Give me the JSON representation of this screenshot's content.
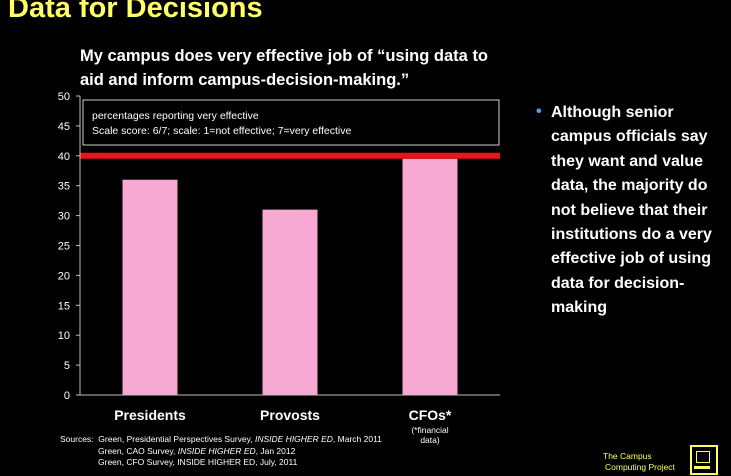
{
  "page": {
    "title": "Data for Decisions",
    "question": "My campus does very effective job of “using data to aid and inform campus-decision-making.”",
    "bullet": "Although senior campus officials say they want and value data, the majority do not believe that their institutions do a very effective job of using data for decision-making",
    "sources": {
      "label": "Sources:",
      "line1_prefix": "Green, Presidential Perspectives Survey,",
      "line1_pub": "INSIDE HIGHER ED",
      "line1_date": ", March 2011",
      "line2_prefix": "Green, CAO Survey,",
      "line2_pub": "INSIDE HIGHER ED",
      "line2_date": ", Jan 2012",
      "line3_prefix": "Green, CFO Survey, INSIDE HIGHER ED, July, 2011"
    },
    "logo": {
      "line1": "The Campus",
      "line2": "Computing Project"
    }
  },
  "chart_data": {
    "type": "bar",
    "categories": [
      "Presidents",
      "Provosts",
      "CFOs*"
    ],
    "category_notes": [
      "",
      "",
      "(*financial data)"
    ],
    "values": [
      36,
      31,
      39.5
    ],
    "ylim": [
      0,
      50
    ],
    "yticks": [
      0,
      5,
      10,
      15,
      20,
      25,
      30,
      35,
      40,
      45,
      50
    ],
    "grid": false,
    "annotation_lines": [
      "percentages  reporting  very effective",
      "Scale score: 6/7;  scale:  1=not effective;   7=very effective"
    ],
    "reference_line": {
      "value": 40,
      "color": "#e8141b"
    },
    "bar_color": "#f7a9d3",
    "axis_color": "#bfbfbf"
  }
}
